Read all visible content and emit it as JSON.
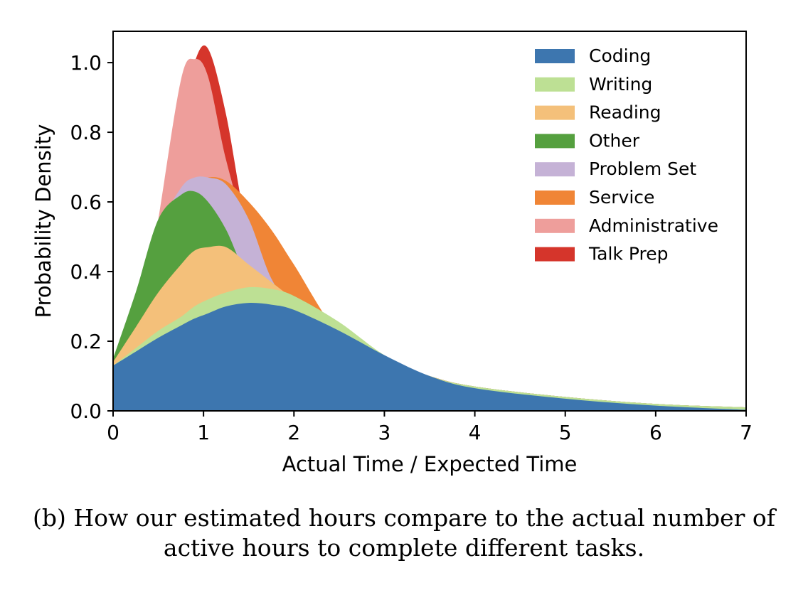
{
  "chart_data": {
    "type": "area",
    "title": "",
    "xlabel": "Actual Time / Expected Time",
    "ylabel": "Probability Density",
    "xlim": [
      0,
      7
    ],
    "ylim": [
      0,
      1.09
    ],
    "xticks": [
      0,
      1,
      2,
      3,
      4,
      5,
      6,
      7
    ],
    "xtick_labels": [
      "0",
      "1",
      "2",
      "3",
      "4",
      "5",
      "6",
      "7"
    ],
    "yticks": [
      0.0,
      0.2,
      0.4,
      0.6,
      0.8,
      1.0
    ],
    "ytick_labels": [
      "0.0",
      "0.2",
      "0.4",
      "0.6",
      "0.8",
      "1.0"
    ],
    "grid": false,
    "legend_position": "top-right",
    "x": [
      0,
      0.25,
      0.5,
      0.75,
      0.9,
      1.05,
      1.25,
      1.5,
      1.75,
      2.0,
      2.5,
      3.0,
      3.5,
      4.0,
      5.0,
      6.0,
      7.0
    ],
    "series": [
      {
        "name": "Talk Prep",
        "color": "#d5352b",
        "values": [
          0.07,
          0.1,
          0.25,
          0.82,
          1.0,
          1.04,
          0.85,
          0.5,
          0.38,
          0.3,
          0.2,
          0.15,
          0.1,
          0.07,
          0.04,
          0.02,
          0.01
        ]
      },
      {
        "name": "Administrative",
        "color": "#ee9e9b",
        "values": [
          0.07,
          0.15,
          0.55,
          0.95,
          1.01,
          0.96,
          0.72,
          0.5,
          0.38,
          0.3,
          0.2,
          0.15,
          0.1,
          0.07,
          0.04,
          0.02,
          0.01
        ]
      },
      {
        "name": "Service",
        "color": "#f08536",
        "values": [
          0.12,
          0.28,
          0.42,
          0.57,
          0.64,
          0.67,
          0.66,
          0.6,
          0.52,
          0.42,
          0.22,
          0.15,
          0.1,
          0.07,
          0.04,
          0.02,
          0.01
        ]
      },
      {
        "name": "Problem Set",
        "color": "#c5b2d6",
        "values": [
          0.13,
          0.32,
          0.52,
          0.64,
          0.67,
          0.67,
          0.65,
          0.55,
          0.38,
          0.3,
          0.22,
          0.15,
          0.1,
          0.07,
          0.04,
          0.02,
          0.01
        ]
      },
      {
        "name": "Other",
        "color": "#55a03f",
        "values": [
          0.15,
          0.34,
          0.55,
          0.62,
          0.63,
          0.6,
          0.52,
          0.38,
          0.35,
          0.32,
          0.22,
          0.15,
          0.1,
          0.07,
          0.04,
          0.02,
          0.01
        ]
      },
      {
        "name": "Reading",
        "color": "#f4c07a",
        "values": [
          0.14,
          0.24,
          0.34,
          0.42,
          0.46,
          0.47,
          0.47,
          0.42,
          0.37,
          0.32,
          0.22,
          0.15,
          0.1,
          0.07,
          0.04,
          0.02,
          0.01
        ]
      },
      {
        "name": "Writing",
        "color": "#bde094",
        "values": [
          0.13,
          0.18,
          0.23,
          0.27,
          0.3,
          0.32,
          0.34,
          0.355,
          0.35,
          0.33,
          0.255,
          0.16,
          0.1,
          0.07,
          0.04,
          0.02,
          0.01
        ]
      },
      {
        "name": "Coding",
        "color": "#3d76af",
        "values": [
          0.13,
          0.17,
          0.21,
          0.245,
          0.265,
          0.28,
          0.3,
          0.31,
          0.305,
          0.29,
          0.23,
          0.16,
          0.1,
          0.065,
          0.035,
          0.015,
          0.003
        ]
      }
    ],
    "legend_order": [
      "Coding",
      "Writing",
      "Reading",
      "Other",
      "Problem Set",
      "Service",
      "Administrative",
      "Talk Prep"
    ]
  },
  "caption": {
    "line1": "(b) How our estimated hours compare to the actual number of",
    "line2": "active hours to complete different tasks."
  }
}
